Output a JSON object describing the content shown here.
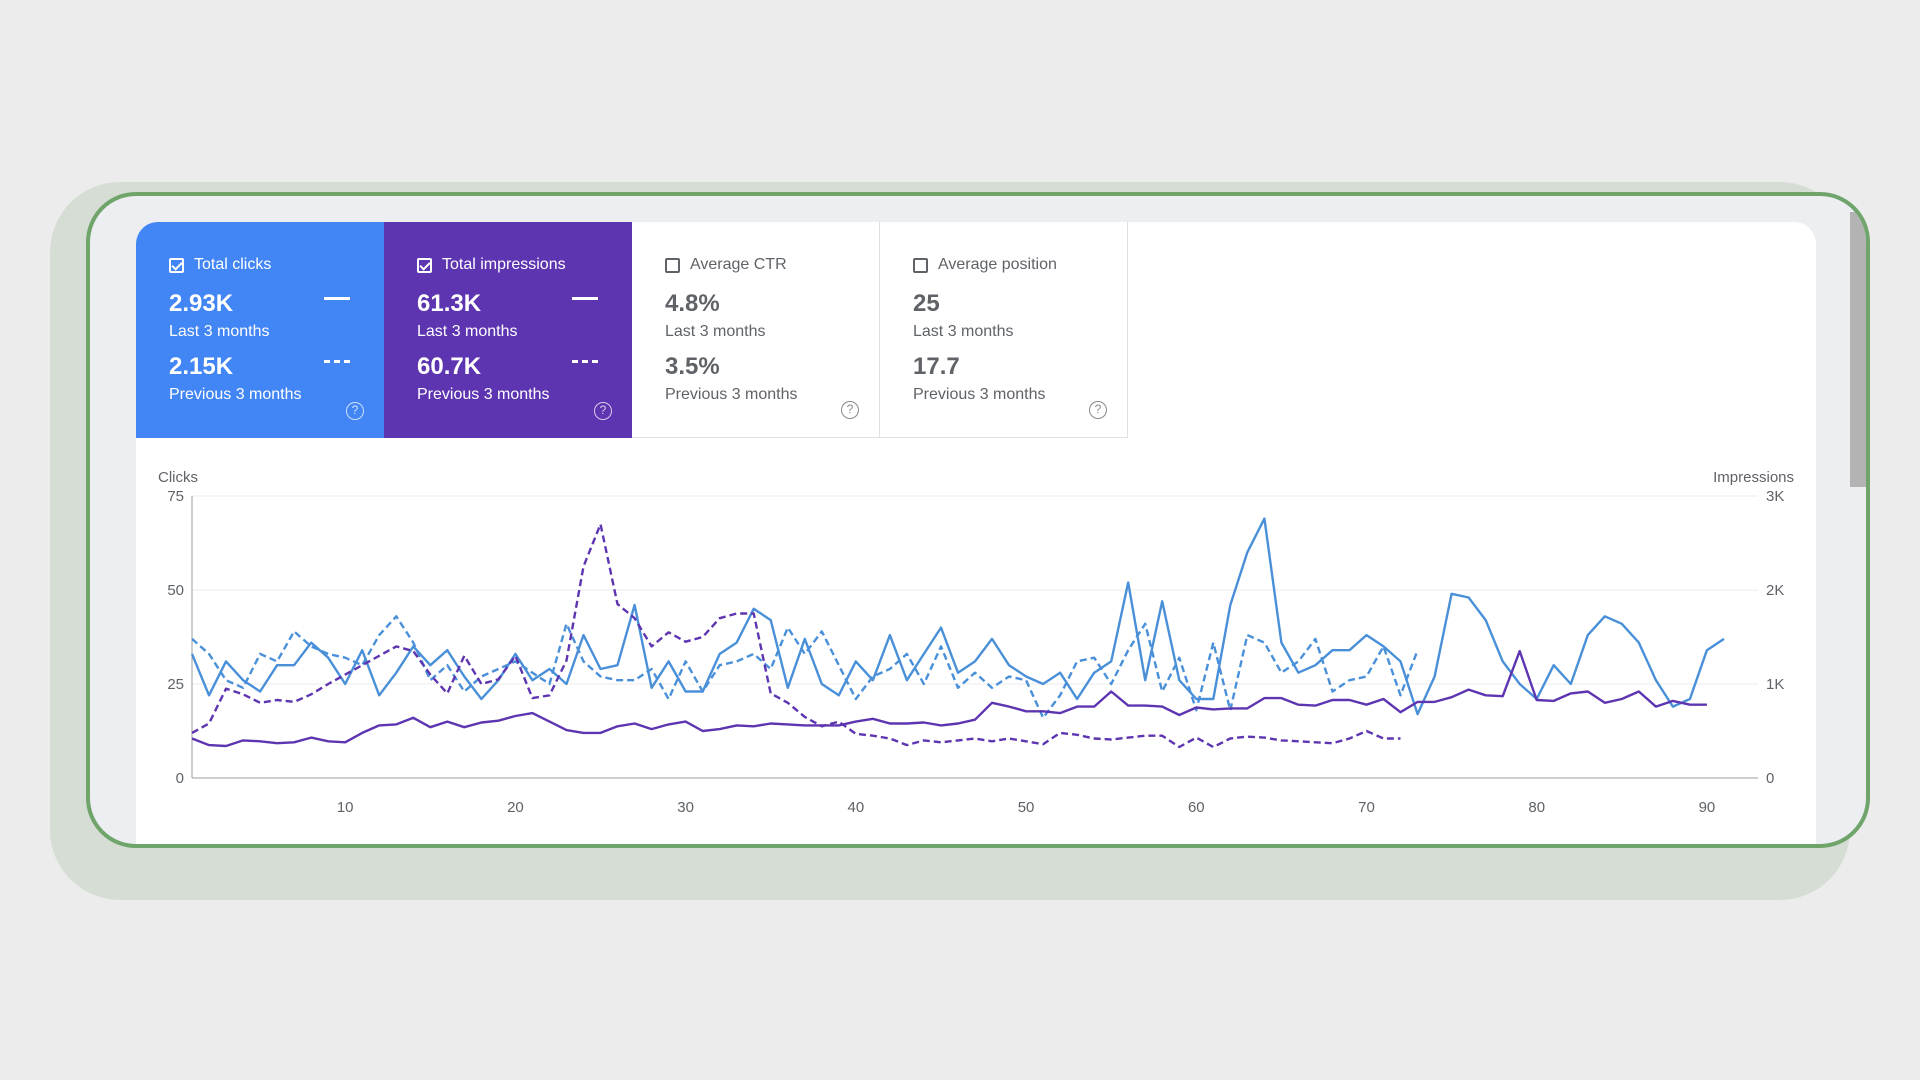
{
  "metrics": [
    {
      "title": "Total clicks",
      "checked": true,
      "value_current": "2.93K",
      "label_current": "Last 3 months",
      "value_previous": "2.15K",
      "label_previous": "Previous 3 months",
      "help_icon": "help-circle-icon",
      "color": "#4285f4"
    },
    {
      "title": "Total impressions",
      "checked": true,
      "value_current": "61.3K",
      "label_current": "Last 3 months",
      "value_previous": "60.7K",
      "label_previous": "Previous 3 months",
      "help_icon": "help-circle-icon",
      "color": "#5e35b1"
    },
    {
      "title": "Average CTR",
      "checked": false,
      "value_current": "4.8%",
      "label_current": "Last 3 months",
      "value_previous": "3.5%",
      "label_previous": "Previous 3 months",
      "help_icon": "help-circle-icon"
    },
    {
      "title": "Average position",
      "checked": false,
      "value_current": "25",
      "label_current": "Last 3 months",
      "value_previous": "17.7",
      "label_previous": "Previous 3 months",
      "help_icon": "help-circle-icon"
    }
  ],
  "help_glyph": "?",
  "chart_data": {
    "type": "line",
    "ylabel_left": "Clicks",
    "ylabel_right": "Impressions",
    "y_left_ticks": [
      "75",
      "50",
      "25",
      "0"
    ],
    "y_right_ticks": [
      "3K",
      "2K",
      "1K",
      "0"
    ],
    "x_ticks": [
      "10",
      "20",
      "30",
      "40",
      "50",
      "60",
      "70",
      "80",
      "90"
    ],
    "ylim_left": [
      0,
      75
    ],
    "ylim_right": [
      0,
      3000
    ],
    "xlim": [
      1,
      93
    ],
    "grid": true,
    "series": [
      {
        "color": "#4a90d9",
        "style": "solid",
        "axis": "left",
        "values": [
          33,
          22,
          31,
          26,
          23,
          30,
          30,
          36,
          32,
          25,
          34,
          22,
          28,
          35,
          30,
          34,
          27,
          21,
          26,
          33,
          26,
          29,
          25,
          38,
          29,
          30,
          46,
          24,
          31,
          23,
          23,
          33,
          36,
          45,
          42,
          24,
          37,
          25,
          22,
          31,
          26,
          38,
          26,
          33,
          40,
          28,
          31,
          37,
          30,
          27,
          25,
          28,
          21,
          28,
          31,
          52,
          26,
          47,
          26,
          21,
          21,
          46,
          60,
          69,
          36,
          28,
          30,
          34,
          34,
          38,
          35,
          31,
          17,
          27,
          49,
          48,
          42,
          31,
          25,
          21,
          30,
          25,
          38,
          43,
          41,
          36,
          26,
          19,
          21,
          34,
          37
        ]
      },
      {
        "color": "#4a90d9",
        "style": "dashed",
        "axis": "left",
        "values": [
          37,
          33,
          26,
          24,
          33,
          31,
          39,
          35,
          33,
          32,
          30,
          38,
          43,
          36,
          26,
          30,
          23,
          27,
          29,
          31,
          28,
          25,
          41,
          31,
          27,
          26,
          26,
          29,
          21,
          31,
          23,
          30,
          31,
          33,
          29,
          40,
          33,
          39,
          30,
          21,
          27,
          29,
          33,
          25,
          35,
          24,
          28,
          24,
          27,
          26,
          16,
          22,
          31,
          32,
          25,
          34,
          41,
          23,
          32,
          18,
          36,
          18,
          38,
          36,
          28,
          31,
          37,
          23,
          26,
          27,
          35,
          22,
          34
        ]
      },
      {
        "color": "#5e35b1",
        "style": "solid",
        "axis": "right",
        "values": [
          420,
          350,
          340,
          400,
          390,
          370,
          380,
          430,
          390,
          380,
          480,
          560,
          570,
          640,
          540,
          600,
          540,
          590,
          610,
          660,
          690,
          600,
          510,
          480,
          480,
          550,
          580,
          520,
          570,
          600,
          500,
          520,
          560,
          550,
          580,
          570,
          560,
          560,
          560,
          600,
          630,
          580,
          580,
          590,
          560,
          580,
          620,
          800,
          760,
          710,
          710,
          690,
          760,
          760,
          920,
          770,
          770,
          760,
          670,
          750,
          730,
          740,
          740,
          850,
          850,
          780,
          770,
          830,
          830,
          780,
          840,
          700,
          810,
          810,
          860,
          940,
          880,
          870,
          1350,
          830,
          820,
          900,
          920,
          800,
          840,
          920,
          760,
          820,
          780,
          780
        ]
      },
      {
        "color": "#5e35b1",
        "style": "dashed",
        "axis": "right",
        "values": [
          480,
          580,
          950,
          890,
          800,
          830,
          810,
          890,
          1000,
          1100,
          1200,
          1300,
          1400,
          1350,
          1100,
          900,
          1300,
          1000,
          1050,
          1300,
          850,
          880,
          1250,
          2250,
          2700,
          1850,
          1700,
          1400,
          1550,
          1450,
          1500,
          1700,
          1750,
          1750,
          900,
          800,
          650,
          550,
          600,
          470,
          450,
          420,
          350,
          400,
          380,
          400,
          420,
          390,
          420,
          390,
          360,
          480,
          460,
          420,
          410,
          430,
          450,
          450,
          330,
          430,
          330,
          420,
          440,
          430,
          400,
          390,
          380,
          370,
          420,
          500,
          420,
          420
        ]
      }
    ]
  }
}
